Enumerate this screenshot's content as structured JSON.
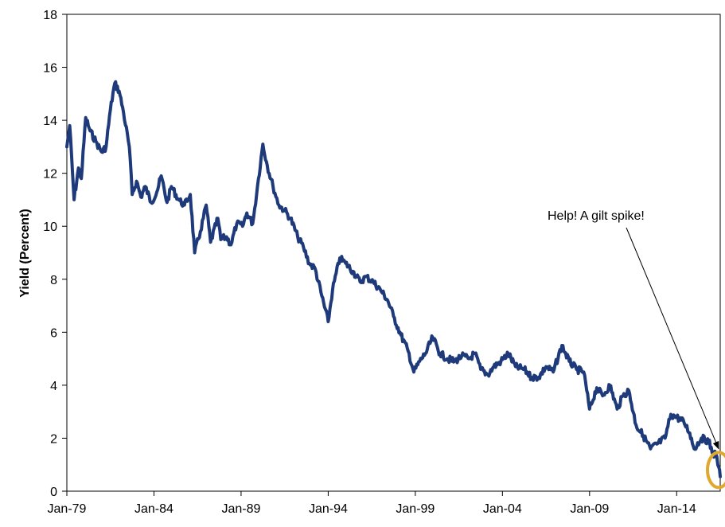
{
  "chart_data": {
    "type": "line",
    "title": "",
    "xlabel": "",
    "ylabel": "Yield (Percent)",
    "ylim": [
      0,
      18
    ],
    "xlim": [
      "1979-01",
      "2016-07"
    ],
    "x_ticks": [
      "Jan-79",
      "Jan-84",
      "Jan-89",
      "Jan-94",
      "Jan-99",
      "Jan-04",
      "Jan-09",
      "Jan-14"
    ],
    "y_ticks": [
      0,
      2,
      4,
      6,
      8,
      10,
      12,
      14,
      16,
      18
    ],
    "grid": false,
    "legend": "none",
    "series": [
      {
        "color": "#1f3a7a",
        "points": [
          [
            "1979-01",
            13.0
          ],
          [
            "1979-03",
            13.8
          ],
          [
            "1979-06",
            11.0
          ],
          [
            "1979-09",
            12.2
          ],
          [
            "1979-11",
            11.8
          ],
          [
            "1980-02",
            14.1
          ],
          [
            "1980-05",
            13.6
          ],
          [
            "1980-09",
            13.2
          ],
          [
            "1981-01",
            12.8
          ],
          [
            "1981-04",
            13.0
          ],
          [
            "1981-07",
            14.4
          ],
          [
            "1981-10",
            15.4
          ],
          [
            "1982-01",
            15.1
          ],
          [
            "1982-04",
            14.3
          ],
          [
            "1982-08",
            13.0
          ],
          [
            "1982-10",
            11.2
          ],
          [
            "1983-01",
            11.7
          ],
          [
            "1983-04",
            11.1
          ],
          [
            "1983-07",
            11.5
          ],
          [
            "1983-11",
            10.9
          ],
          [
            "1984-03",
            11.3
          ],
          [
            "1984-06",
            11.9
          ],
          [
            "1984-10",
            10.9
          ],
          [
            "1985-01",
            11.5
          ],
          [
            "1985-06",
            11.0
          ],
          [
            "1985-10",
            10.8
          ],
          [
            "1986-02",
            11.2
          ],
          [
            "1986-05",
            9.0
          ],
          [
            "1986-09",
            9.8
          ],
          [
            "1987-01",
            10.8
          ],
          [
            "1987-04",
            9.4
          ],
          [
            "1987-09",
            10.3
          ],
          [
            "1987-11",
            9.5
          ],
          [
            "1988-03",
            9.6
          ],
          [
            "1988-06",
            9.3
          ],
          [
            "1988-10",
            10.1
          ],
          [
            "1989-02",
            10.0
          ],
          [
            "1989-05",
            10.5
          ],
          [
            "1989-09",
            10.1
          ],
          [
            "1990-01",
            11.8
          ],
          [
            "1990-04",
            13.1
          ],
          [
            "1990-07",
            12.3
          ],
          [
            "1990-11",
            11.5
          ],
          [
            "1991-03",
            10.8
          ],
          [
            "1991-07",
            10.6
          ],
          [
            "1991-11",
            10.3
          ],
          [
            "1992-04",
            9.6
          ],
          [
            "1992-08",
            9.2
          ],
          [
            "1992-12",
            8.6
          ],
          [
            "1993-04",
            8.4
          ],
          [
            "1993-08",
            7.5
          ],
          [
            "1994-01",
            6.4
          ],
          [
            "1994-04",
            7.6
          ],
          [
            "1994-09",
            8.8
          ],
          [
            "1995-01",
            8.6
          ],
          [
            "1995-06",
            8.3
          ],
          [
            "1995-11",
            7.9
          ],
          [
            "1996-03",
            8.1
          ],
          [
            "1996-08",
            7.9
          ],
          [
            "1997-01",
            7.6
          ],
          [
            "1997-06",
            7.2
          ],
          [
            "1997-10",
            6.6
          ],
          [
            "1998-03",
            5.9
          ],
          [
            "1998-08",
            5.3
          ],
          [
            "1998-12",
            4.5
          ],
          [
            "1999-04",
            4.9
          ],
          [
            "1999-08",
            5.2
          ],
          [
            "2000-01",
            5.8
          ],
          [
            "2000-06",
            5.2
          ],
          [
            "2000-11",
            5.0
          ],
          [
            "2001-04",
            4.9
          ],
          [
            "2001-09",
            5.1
          ],
          [
            "2002-02",
            5.0
          ],
          [
            "2002-06",
            5.2
          ],
          [
            "2002-10",
            4.6
          ],
          [
            "2003-03",
            4.4
          ],
          [
            "2003-07",
            4.7
          ],
          [
            "2003-12",
            4.9
          ],
          [
            "2004-05",
            5.2
          ],
          [
            "2004-10",
            4.7
          ],
          [
            "2005-04",
            4.6
          ],
          [
            "2005-09",
            4.3
          ],
          [
            "2006-02",
            4.3
          ],
          [
            "2006-07",
            4.7
          ],
          [
            "2006-12",
            4.5
          ],
          [
            "2007-06",
            5.5
          ],
          [
            "2007-11",
            4.9
          ],
          [
            "2008-04",
            4.6
          ],
          [
            "2008-09",
            4.5
          ],
          [
            "2009-01",
            3.1
          ],
          [
            "2009-06",
            3.9
          ],
          [
            "2009-10",
            3.6
          ],
          [
            "2010-03",
            4.0
          ],
          [
            "2010-08",
            3.1
          ],
          [
            "2010-12",
            3.6
          ],
          [
            "2011-04",
            3.8
          ],
          [
            "2011-09",
            2.5
          ],
          [
            "2012-02",
            2.1
          ],
          [
            "2012-07",
            1.6
          ],
          [
            "2012-12",
            1.8
          ],
          [
            "2013-05",
            2.0
          ],
          [
            "2013-09",
            2.9
          ],
          [
            "2014-01",
            2.8
          ],
          [
            "2014-06",
            2.6
          ],
          [
            "2014-10",
            2.2
          ],
          [
            "2015-01",
            1.6
          ],
          [
            "2015-06",
            2.0
          ],
          [
            "2015-11",
            1.9
          ],
          [
            "2016-02",
            1.4
          ],
          [
            "2016-04",
            1.4
          ],
          [
            "2016-06",
            0.9
          ],
          [
            "2016-07",
            0.55
          ]
        ]
      }
    ],
    "annotations": [
      {
        "text": "Help! A gilt spike!",
        "points_to": [
          "2016-07",
          1.6
        ]
      }
    ],
    "highlight": {
      "at": [
        "2016-07",
        0.8
      ],
      "color": "#e0a82e"
    }
  }
}
